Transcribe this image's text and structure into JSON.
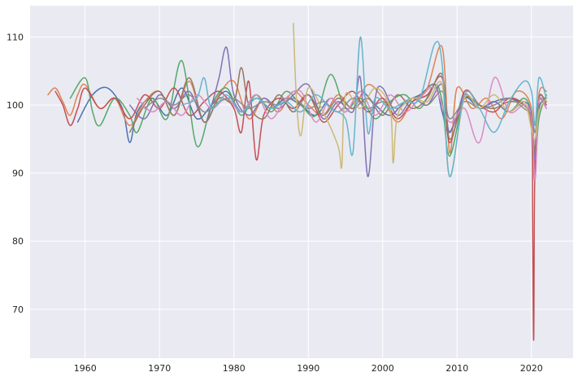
{
  "chart_data": {
    "type": "line",
    "title": "",
    "xlabel": "",
    "ylabel": "",
    "xlim": [
      1952.6,
      2025.6
    ],
    "ylim": [
      62.8,
      114.6
    ],
    "grid": true,
    "legend": "none",
    "style": {
      "background": "#eaeaf2",
      "grid": "#ffffff"
    },
    "x_ticks": [
      {
        "value": 1960,
        "label": "1960"
      },
      {
        "value": 1970,
        "label": "1970"
      },
      {
        "value": 1980,
        "label": "1980"
      },
      {
        "value": 1990,
        "label": "1990"
      },
      {
        "value": 2000,
        "label": "2000"
      },
      {
        "value": 2010,
        "label": "2010"
      },
      {
        "value": 2020,
        "label": "2020"
      }
    ],
    "y_ticks": [
      {
        "value": 70,
        "label": "70"
      },
      {
        "value": 80,
        "label": "80"
      },
      {
        "value": 90,
        "label": "90"
      },
      {
        "value": 100,
        "label": "100"
      },
      {
        "value": 110,
        "label": "110"
      }
    ],
    "series": [
      {
        "color": "#4c72b0",
        "x": [
          1959,
          1961,
          1963,
          1965,
          1966,
          1967,
          1969,
          1971,
          1973,
          1975,
          1977,
          1979,
          1981,
          1983,
          1985,
          1987,
          1989,
          1991,
          1993,
          1995,
          1997,
          1999,
          2001,
          2003,
          2005,
          2007,
          2008,
          2009,
          2011,
          2013,
          2015,
          2017,
          2019,
          2020,
          2020.5,
          2021,
          2022
        ],
        "y": [
          97.5,
          101.5,
          102.5,
          99.5,
          94.5,
          99,
          101,
          98.5,
          102.5,
          98,
          100,
          102,
          99,
          101,
          99.5,
          101,
          100,
          98.5,
          101,
          99,
          102,
          100,
          98.5,
          100.5,
          101.5,
          103,
          99,
          96,
          101,
          99.5,
          100.5,
          101,
          100,
          98.5,
          93,
          99.5,
          101
        ]
      },
      {
        "color": "#dd8452",
        "x": [
          1955,
          1956,
          1957,
          1958,
          1959,
          1960,
          1962,
          1964,
          1966,
          1968,
          1970,
          1972,
          1974,
          1976,
          1978,
          1980,
          1982,
          1984,
          1986,
          1988,
          1990,
          1992,
          1994,
          1996,
          1998,
          2000,
          2002,
          2004,
          2006,
          2008,
          2009,
          2010,
          2012,
          2014,
          2016,
          2018,
          2020,
          2020.4,
          2021,
          2022
        ],
        "y": [
          101.5,
          102.5,
          100.5,
          98.5,
          101.5,
          103,
          99.5,
          101,
          97,
          100.5,
          102,
          98.5,
          103.5,
          97.5,
          101.5,
          103.5,
          98,
          101,
          99,
          102,
          100,
          98.5,
          101.5,
          99.5,
          103,
          101,
          97.5,
          100.5,
          102.5,
          108.5,
          93,
          102.5,
          99.5,
          101,
          98,
          102,
          99.5,
          89,
          101.5,
          102
        ]
      },
      {
        "color": "#55a868",
        "x": [
          1958,
          1960,
          1961,
          1962,
          1964,
          1966,
          1967,
          1969,
          1971,
          1973,
          1975,
          1977,
          1979,
          1981,
          1983,
          1985,
          1987,
          1989,
          1991,
          1993,
          1995,
          1997,
          1999,
          2001,
          2003,
          2005,
          2007,
          2008,
          2009,
          2011,
          2013,
          2015,
          2017,
          2019,
          2020,
          2020.5,
          2021,
          2022
        ],
        "y": [
          101,
          104,
          99,
          97,
          101,
          98.5,
          96,
          101,
          98,
          106.5,
          94,
          100,
          102.5,
          98.5,
          101.5,
          99,
          102,
          100,
          98.5,
          104.5,
          99.5,
          101,
          98,
          100.5,
          101.5,
          99.5,
          103,
          100.5,
          92.5,
          101,
          99.5,
          100.5,
          99,
          101,
          98.5,
          91.5,
          98,
          101.5
        ]
      },
      {
        "color": "#c44e52",
        "x": [
          1956,
          1957,
          1958,
          1959,
          1960,
          1962,
          1964,
          1966,
          1968,
          1970,
          1972,
          1974,
          1976,
          1978,
          1980,
          1981,
          1982,
          1983,
          1984,
          1986,
          1988,
          1990,
          1992,
          1994,
          1996,
          1998,
          2000,
          2002,
          2004,
          2006,
          2008,
          2009,
          2011,
          2013,
          2015,
          2017,
          2019,
          2020,
          2020.15,
          2020.3,
          2020.45,
          2021,
          2022
        ],
        "y": [
          102,
          100,
          97,
          99.5,
          102.5,
          99.5,
          101,
          98,
          101.5,
          99.5,
          102.5,
          98.5,
          100.5,
          102,
          99.5,
          96,
          103.5,
          92,
          98.5,
          101,
          99.5,
          101.5,
          97.5,
          100,
          102,
          99,
          101,
          98,
          100.5,
          101.5,
          104,
          94.5,
          102,
          100,
          99,
          101,
          100,
          97,
          84,
          65.5,
          90,
          101,
          100
        ]
      },
      {
        "color": "#8172b3",
        "x": [
          1966,
          1968,
          1970,
          1972,
          1974,
          1976,
          1977,
          1978,
          1979,
          1980,
          1982,
          1984,
          1986,
          1988,
          1990,
          1992,
          1994,
          1996,
          1997,
          1998,
          1999,
          2000,
          2002,
          2004,
          2006,
          2008,
          2009,
          2011,
          2013,
          2015,
          2017,
          2019,
          2020,
          2020.5,
          2021,
          2022
        ],
        "y": [
          100,
          98,
          101.5,
          99.5,
          102,
          97.5,
          100,
          104,
          108.5,
          101.5,
          98.5,
          101,
          99.5,
          101.5,
          103,
          98,
          100.5,
          99,
          104,
          89.5,
          101,
          102.5,
          98.5,
          101,
          100,
          103,
          96,
          101.5,
          99.5,
          100.5,
          99,
          100.5,
          98.5,
          92,
          100.5,
          99.5
        ]
      },
      {
        "color": "#937860",
        "x": [
          1966,
          1968,
          1970,
          1972,
          1974,
          1976,
          1978,
          1980,
          1981,
          1982,
          1984,
          1986,
          1988,
          1990,
          1992,
          1994,
          1996,
          1998,
          2000,
          2002,
          2004,
          2006,
          2008,
          2009,
          2011,
          2013,
          2015,
          2017,
          2019,
          2020,
          2020.5,
          2021,
          2022
        ],
        "y": [
          96,
          100,
          102,
          98.5,
          104,
          97.5,
          101,
          100.5,
          105.5,
          100,
          98,
          101.5,
          99,
          101.5,
          98.5,
          101,
          99.5,
          101,
          98.5,
          101.5,
          99.5,
          101,
          104.5,
          95,
          101,
          100,
          99.5,
          100.5,
          100,
          98,
          93,
          101,
          100.5
        ]
      },
      {
        "color": "#da8bc3",
        "x": [
          1967,
          1969,
          1971,
          1973,
          1975,
          1977,
          1979,
          1981,
          1983,
          1985,
          1987,
          1989,
          1991,
          1993,
          1995,
          1997,
          1999,
          2001,
          2003,
          2005,
          2007,
          2009,
          2011,
          2013,
          2015,
          2017,
          2019,
          2020,
          2020.5,
          2021,
          2022
        ],
        "y": [
          101,
          99,
          100.5,
          98.5,
          101.5,
          99.5,
          101,
          99,
          101.5,
          98,
          101,
          102,
          97.5,
          101,
          99,
          102,
          98.5,
          101.5,
          99,
          101,
          102.5,
          97.5,
          99.5,
          94.5,
          104,
          99,
          100,
          98,
          89,
          100.5,
          99.5
        ]
      },
      {
        "color": "#8c8c8c",
        "x": [
          1968,
          1970,
          1972,
          1974,
          1976,
          1978,
          1980,
          1982,
          1984,
          1986,
          1988,
          1990,
          1992,
          1994,
          1996,
          1998,
          2000,
          2002,
          2004,
          2006,
          2008,
          2009,
          2011,
          2013,
          2015,
          2017,
          2019,
          2020,
          2020.5,
          2021,
          2022
        ],
        "y": [
          99.5,
          101,
          100,
          101.5,
          99,
          100.5,
          101,
          99.5,
          100.5,
          100,
          101,
          99.5,
          100.5,
          99,
          101,
          99.5,
          100.5,
          99.5,
          101,
          100,
          102,
          98,
          100.5,
          99.5,
          100,
          101,
          99.5,
          98.5,
          96,
          100,
          100.5
        ]
      },
      {
        "color": "#ccb974",
        "x": [
          1988,
          1988.4,
          1989,
          1990,
          1992,
          1994,
          1994.5,
          1995,
          1997,
          1999,
          2001,
          2001.4,
          2002,
          2004,
          2006,
          2008,
          2009,
          2011,
          2013,
          2015,
          2017,
          2019,
          2020,
          2020.5,
          2021,
          2022
        ],
        "y": [
          112,
          101,
          95.5,
          102.5,
          99,
          94,
          91,
          101.5,
          99.5,
          102.5,
          99.5,
          91.5,
          98.5,
          101,
          100.5,
          103,
          89.5,
          101,
          99.5,
          101.5,
          99,
          100.5,
          96.5,
          95,
          99,
          101
        ]
      },
      {
        "color": "#64b5cd",
        "x": [
          1973,
          1975,
          1976,
          1977,
          1979,
          1981,
          1983,
          1985,
          1987,
          1989,
          1991,
          1993,
          1995,
          1996,
          1997,
          1998,
          1999,
          2001,
          2003,
          2005,
          2007,
          2008,
          2009,
          2011,
          2013,
          2015,
          2017,
          2019,
          2020,
          2020.5,
          2021,
          2022
        ],
        "y": [
          100,
          101,
          104,
          99.5,
          101.5,
          99,
          101,
          99.5,
          100.5,
          99,
          101.5,
          99.5,
          98,
          93,
          110,
          96,
          101,
          99.5,
          100.5,
          101,
          109,
          106,
          89.5,
          101.5,
          99.5,
          96,
          100.5,
          103.5,
          102,
          97,
          104,
          101
        ]
      }
    ]
  }
}
